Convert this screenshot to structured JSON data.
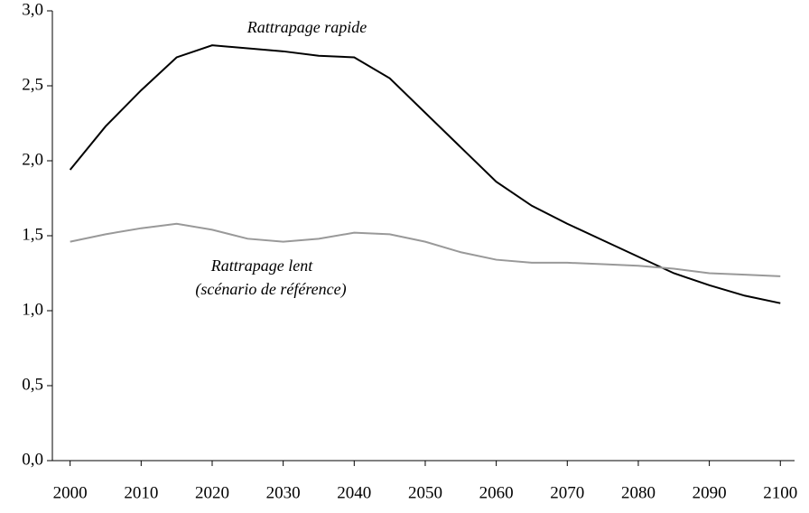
{
  "chart_data": {
    "type": "line",
    "annotations": [
      "Rattrapage rapide",
      "Rattrapage lent",
      "(scénario de référence)"
    ],
    "x": [
      2000,
      2005,
      2010,
      2015,
      2020,
      2025,
      2030,
      2035,
      2040,
      2045,
      2050,
      2055,
      2060,
      2065,
      2070,
      2075,
      2080,
      2085,
      2090,
      2095,
      2100
    ],
    "series": [
      {
        "name": "Rattrapage rapide",
        "color": "#000000",
        "values": [
          1.94,
          2.23,
          2.47,
          2.69,
          2.77,
          2.75,
          2.73,
          2.7,
          2.69,
          2.55,
          2.32,
          2.09,
          1.86,
          1.7,
          1.58,
          1.47,
          1.36,
          1.25,
          1.17,
          1.1,
          1.05
        ]
      },
      {
        "name": "Rattrapage lent",
        "color": "#999999",
        "values": [
          1.46,
          1.51,
          1.55,
          1.58,
          1.54,
          1.48,
          1.46,
          1.48,
          1.52,
          1.51,
          1.46,
          1.39,
          1.34,
          1.32,
          1.32,
          1.31,
          1.3,
          1.28,
          1.25,
          1.24,
          1.23
        ]
      }
    ],
    "xlim": [
      1997.5,
      2102
    ],
    "xticks": [
      2000,
      2010,
      2020,
      2030,
      2040,
      2050,
      2060,
      2070,
      2080,
      2090,
      2100
    ],
    "ylim": [
      0,
      3
    ],
    "yticks": [
      {
        "value": 0,
        "label": "0,0"
      },
      {
        "value": 0.5,
        "label": "0,5"
      },
      {
        "value": 1,
        "label": "1,0"
      },
      {
        "value": 1.5,
        "label": "1,5"
      },
      {
        "value": 2,
        "label": "2,0"
      },
      {
        "value": 2.5,
        "label": "2,5"
      },
      {
        "value": 3,
        "label": "3,0"
      }
    ],
    "grid": false
  }
}
